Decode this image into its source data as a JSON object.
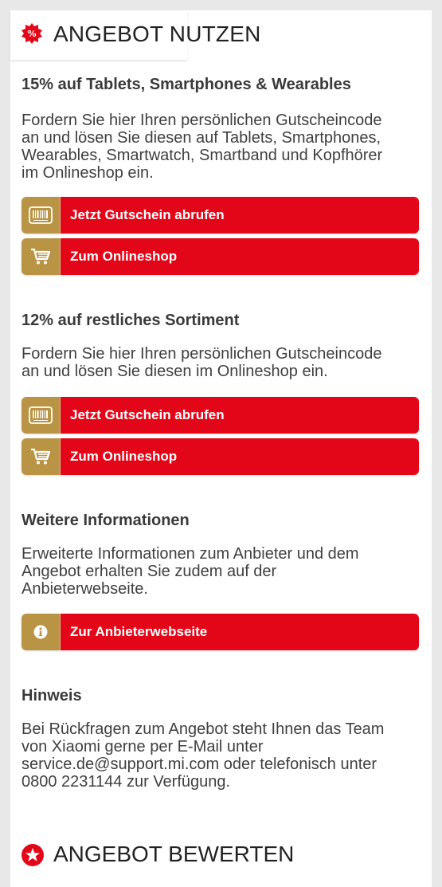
{
  "header": {
    "title": "ANGEBOT NUTZEN",
    "badge_icon": "percent-badge-icon"
  },
  "section1": {
    "title": "15% auf Tablets, Smartphones & Wearables",
    "lines": [
      "Fordern Sie hier Ihren persönlichen Gutscheincode",
      "an und lösen Sie diesen auf Tablets, Smartphones,",
      "Wearables, Smartwatch, Smartband und Kopfhörer",
      "im Onlineshop ein."
    ],
    "voucher_button": "Jetzt Gutschein abrufen",
    "shop_button": "Zum Onlineshop"
  },
  "section2": {
    "title": "12% auf restliches Sortiment",
    "lines": [
      "Fordern Sie hier Ihren persönlichen Gutscheincode",
      "an und lösen Sie diesen im Onlineshop ein."
    ],
    "voucher_button": "Jetzt Gutschein abrufen",
    "shop_button": "Zum Onlineshop"
  },
  "section3": {
    "title": "Weitere Informationen",
    "lines": [
      "Erweiterte Informationen zum Anbieter und dem",
      "Angebot erhalten Sie zudem auf der",
      "Anbieterwebseite."
    ],
    "website_button": "Zur Anbieterwebseite"
  },
  "section4": {
    "title": "Hinweis",
    "lines": [
      "Bei Rückfragen zum Angebot steht Ihnen das Team",
      "von Xiaomi gerne per E-Mail unter",
      "service.de@support.mi.com oder telefonisch unter",
      "0800 2231144 zur Verfügung."
    ]
  },
  "footer": {
    "title": "ANGEBOT BEWERTEN",
    "badge_icon": "star-badge-icon"
  },
  "colors": {
    "accent_red": "#e30618",
    "icon_gold": "#b99445"
  }
}
